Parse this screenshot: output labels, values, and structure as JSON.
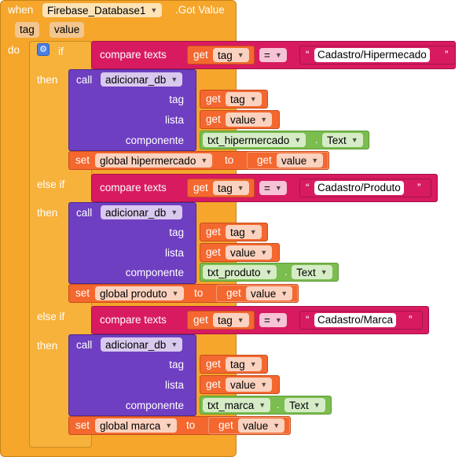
{
  "event": {
    "when_label": "when",
    "component": "Firebase_Database1",
    "event_name": ".Got Value",
    "params": [
      "tag",
      "value"
    ],
    "do_label": "do"
  },
  "control": {
    "if_label": "if",
    "then_label": "then",
    "else_if_label": "else if"
  },
  "common": {
    "compare_texts": "compare texts",
    "get_label": "get",
    "tag_var": "tag",
    "value_var": "value",
    "op_equals": "=",
    "call_label": "call",
    "procedure": "adicionar_db",
    "arg_tag": "tag",
    "arg_lista": "lista",
    "arg_componente": "componente",
    "set_label": "set",
    "to_label": "to",
    "text_prop": "Text",
    "quote_open": "“",
    "quote_close": "”"
  },
  "branches": [
    {
      "compare_string": "Cadastro/Hipermecado",
      "component": "txt_hipermercado",
      "global_var": "global hipermercado"
    },
    {
      "compare_string": "Cadastro/Produto",
      "component": "txt_produto",
      "global_var": "global produto"
    },
    {
      "compare_string": "Cadastro/Marca",
      "component": "txt_marca",
      "global_var": "global marca"
    }
  ],
  "colors": {
    "event": "#f6a62b",
    "control": "#f7b23b",
    "procedure": "#6f3fc2",
    "variable": "#f4682f",
    "text": "#d81b60",
    "component": "#7bbd4f"
  }
}
